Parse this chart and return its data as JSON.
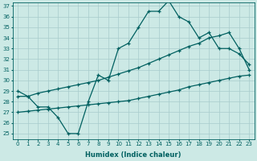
{
  "hours": [
    0,
    1,
    2,
    3,
    4,
    5,
    6,
    7,
    8,
    9,
    10,
    11,
    12,
    13,
    14,
    15,
    16,
    17,
    18,
    19,
    20,
    21,
    22,
    23
  ],
  "line_jagged": [
    29,
    28.5,
    27.5,
    27.5,
    26.5,
    25,
    25,
    28,
    30.5,
    30,
    33,
    33.5,
    35,
    36.5,
    36.5,
    37.5,
    36,
    35.5,
    34,
    34.5,
    33,
    33,
    32.5,
    31.5
  ],
  "line_upper": [
    28.5,
    28.5,
    28.8,
    29.0,
    29.2,
    29.4,
    29.6,
    29.8,
    30.0,
    30.3,
    30.6,
    30.9,
    31.2,
    31.6,
    32.0,
    32.4,
    32.8,
    33.2,
    33.5,
    34.0,
    34.2,
    34.5,
    33,
    31
  ],
  "line_lower": [
    27.0,
    27.1,
    27.2,
    27.3,
    27.4,
    27.5,
    27.6,
    27.7,
    27.8,
    27.9,
    28.0,
    28.1,
    28.3,
    28.5,
    28.7,
    28.9,
    29.1,
    29.4,
    29.6,
    29.8,
    30.0,
    30.2,
    30.4,
    30.5
  ],
  "bg_color": "#cce9e5",
  "line_color": "#006060",
  "grid_color": "#a8cccc",
  "xlabel": "Humidex (Indice chaleur)",
  "ylim_min": 25,
  "ylim_max": 37,
  "yticks": [
    25,
    26,
    27,
    28,
    29,
    30,
    31,
    32,
    33,
    34,
    35,
    36,
    37
  ],
  "xticks": [
    0,
    1,
    2,
    3,
    4,
    5,
    6,
    7,
    8,
    9,
    10,
    11,
    12,
    13,
    14,
    15,
    16,
    17,
    18,
    19,
    20,
    21,
    22,
    23
  ]
}
